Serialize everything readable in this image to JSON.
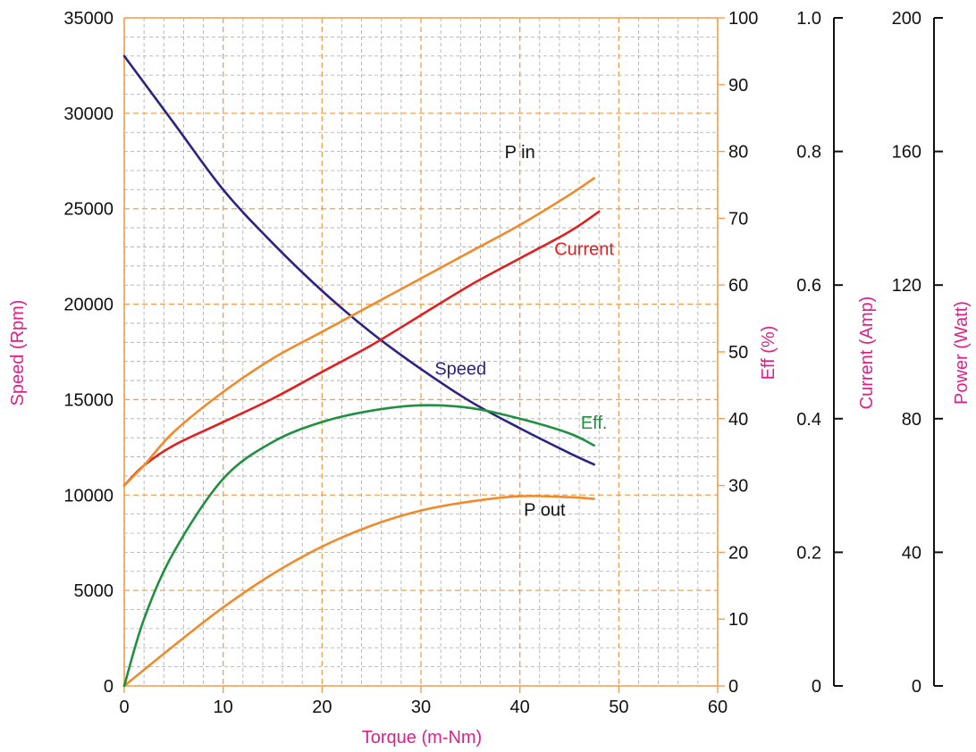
{
  "chart_data": {
    "type": "line",
    "xlabel": "Torque (m-Nm)",
    "xlim": [
      0,
      60
    ],
    "x_ticks": [
      0,
      10,
      20,
      30,
      40,
      50,
      60
    ],
    "axes": {
      "speed": {
        "label": "Speed (Rpm)",
        "lim": [
          0,
          35000
        ],
        "ticks": [
          "0",
          "5000",
          "10000",
          "15000",
          "20000",
          "25000",
          "30000",
          "35000"
        ]
      },
      "eff": {
        "label": "Eff  (%)",
        "lim": [
          0,
          100
        ],
        "ticks": [
          "0",
          "10",
          "20",
          "30",
          "40",
          "50",
          "60",
          "70",
          "80",
          "90",
          "100"
        ]
      },
      "current": {
        "label": "Current (Amp)",
        "lim": [
          0,
          1.0
        ],
        "ticks": [
          "0",
          "0.2",
          "0.4",
          "0.6",
          "0.8",
          "1.0"
        ]
      },
      "power": {
        "label": "Power (Watt)",
        "lim": [
          0,
          200
        ],
        "ticks": [
          "0",
          "40",
          "80",
          "120",
          "160",
          "200"
        ]
      }
    },
    "grid": true,
    "colors": {
      "grid_major": "#f0a050",
      "grid_minor": "#aaaaaa",
      "axis_label": "#e0208a",
      "speed": "#2b2480",
      "current": "#e02020",
      "p_in": "#f08a2a",
      "p_out": "#f08a2a",
      "eff": "#1f9040"
    },
    "series": [
      {
        "name": "Speed",
        "axis": "speed",
        "label_at": [
          34,
          16300
        ],
        "label_color": "#2b2480",
        "x": [
          0,
          5,
          10,
          15,
          20,
          25,
          30,
          35,
          40,
          45,
          47.5
        ],
        "y": [
          33000,
          29500,
          26000,
          23200,
          20700,
          18500,
          16600,
          14900,
          13500,
          12200,
          11600
        ]
      },
      {
        "name": "Current",
        "axis": "current",
        "label_at": [
          46.5,
          0.645
        ],
        "label_color": "#e02020",
        "x": [
          0,
          2,
          5,
          10,
          15,
          20,
          25,
          30,
          35,
          40,
          45,
          48
        ],
        "y": [
          0.3,
          0.33,
          0.36,
          0.395,
          0.43,
          0.47,
          0.51,
          0.555,
          0.6,
          0.64,
          0.68,
          0.71
        ]
      },
      {
        "name": "P in",
        "axis": "power",
        "label_at": [
          40,
          158
        ],
        "label_color": "#111111",
        "x": [
          0,
          2,
          5,
          10,
          15,
          20,
          25,
          30,
          35,
          40,
          45,
          47.5
        ],
        "y": [
          60,
          66,
          76,
          88,
          98,
          106,
          114,
          122,
          130,
          138,
          147,
          152
        ]
      },
      {
        "name": "P out",
        "axis": "power",
        "label_at": [
          42.5,
          51
        ],
        "label_color": "#111111",
        "x": [
          0,
          5,
          10,
          15,
          20,
          25,
          30,
          35,
          40,
          45,
          47.5
        ],
        "y": [
          0,
          12,
          23.5,
          33.5,
          41.7,
          48,
          52.5,
          55.2,
          56.8,
          56.5,
          56
        ]
      },
      {
        "name": "Eff.",
        "axis": "eff",
        "label_at": [
          47.5,
          38.5
        ],
        "label_color": "#1f9040",
        "x": [
          0,
          2,
          5,
          10,
          15,
          20,
          25,
          30,
          35,
          40,
          45,
          47.5
        ],
        "y": [
          0,
          10,
          20,
          31,
          36.5,
          39.5,
          41.2,
          42,
          41.6,
          40,
          37.8,
          36
        ]
      }
    ]
  }
}
